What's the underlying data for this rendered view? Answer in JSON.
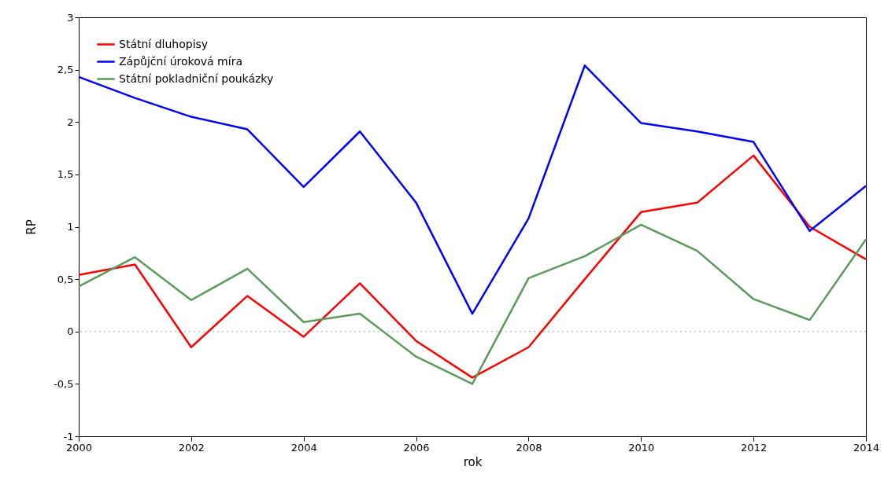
{
  "chart_data": {
    "type": "line",
    "xlabel": "rok",
    "ylabel": "RP",
    "x": [
      2000,
      2001,
      2002,
      2003,
      2004,
      2005,
      2006,
      2007,
      2008,
      2009,
      2010,
      2011,
      2012,
      2013,
      2014
    ],
    "series": [
      {
        "name": "Státní dluhopisy",
        "color": "#ff0000",
        "values": [
          0.54,
          0.64,
          -0.15,
          0.34,
          -0.05,
          0.46,
          -0.09,
          -0.44,
          -0.15,
          0.5,
          1.14,
          1.23,
          1.68,
          1.0,
          0.69
        ]
      },
      {
        "name": "Zápůjční úroková míra",
        "color": "#0000ff",
        "values": [
          2.43,
          2.23,
          2.05,
          1.93,
          1.38,
          1.91,
          1.23,
          0.17,
          1.08,
          2.54,
          1.99,
          1.91,
          1.81,
          0.96,
          1.39
        ]
      },
      {
        "name": "Státní pokladniční poukázky",
        "color": "#5c9a5c",
        "values": [
          0.43,
          0.71,
          0.3,
          0.6,
          0.09,
          0.17,
          -0.24,
          -0.5,
          0.51,
          0.72,
          1.02,
          0.77,
          0.31,
          0.11,
          0.88
        ]
      }
    ],
    "xlim": [
      2000,
      2014
    ],
    "xticks": [
      2000,
      2002,
      2004,
      2006,
      2008,
      2010,
      2012,
      2014
    ],
    "ylim": [
      -1,
      3
    ],
    "yticks": [
      -1,
      {
        "value": -0.5,
        "label": "-0,5"
      },
      0,
      {
        "value": 0.5,
        "label": "0,5"
      },
      1,
      {
        "value": 1.5,
        "label": "1,5"
      },
      2,
      {
        "value": 2.5,
        "label": "2,5"
      },
      3
    ],
    "ref_lines": [
      {
        "axis": "y",
        "value": 0,
        "color": "#aaaaaa",
        "line_style": "dotted"
      }
    ],
    "legend": "top left",
    "grid": false,
    "marker": "none",
    "line_style": "solid"
  }
}
